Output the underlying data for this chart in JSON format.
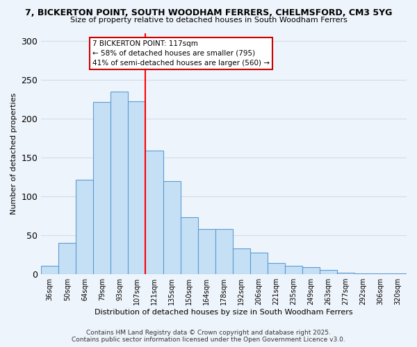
{
  "title_line1": "7, BICKERTON POINT, SOUTH WOODHAM FERRERS, CHELMSFORD, CM3 5YG",
  "title_line2": "Size of property relative to detached houses in South Woodham Ferrers",
  "xlabel": "Distribution of detached houses by size in South Woodham Ferrers",
  "ylabel": "Number of detached properties",
  "categories": [
    "36sqm",
    "50sqm",
    "64sqm",
    "79sqm",
    "93sqm",
    "107sqm",
    "121sqm",
    "135sqm",
    "150sqm",
    "164sqm",
    "178sqm",
    "192sqm",
    "206sqm",
    "221sqm",
    "235sqm",
    "249sqm",
    "263sqm",
    "277sqm",
    "292sqm",
    "306sqm",
    "320sqm"
  ],
  "values": [
    11,
    40,
    121,
    221,
    235,
    222,
    159,
    120,
    73,
    58,
    58,
    33,
    28,
    14,
    11,
    9,
    5,
    2,
    1,
    1,
    1
  ],
  "bar_color": "#c5e0f5",
  "bar_edge_color": "#5b9bd5",
  "vline_x": 5.5,
  "vline_color": "red",
  "annotation_line1": "7 BICKERTON POINT: 117sqm",
  "annotation_line2": "← 58% of detached houses are smaller (795)",
  "annotation_line3": "41% of semi-detached houses are larger (560) →",
  "ylim": [
    0,
    310
  ],
  "yticks": [
    0,
    50,
    100,
    150,
    200,
    250,
    300
  ],
  "background_color": "#eef4fb",
  "grid_color": "#d0dde8",
  "footer_line1": "Contains HM Land Registry data © Crown copyright and database right 2025.",
  "footer_line2": "Contains public sector information licensed under the Open Government Licence v3.0."
}
